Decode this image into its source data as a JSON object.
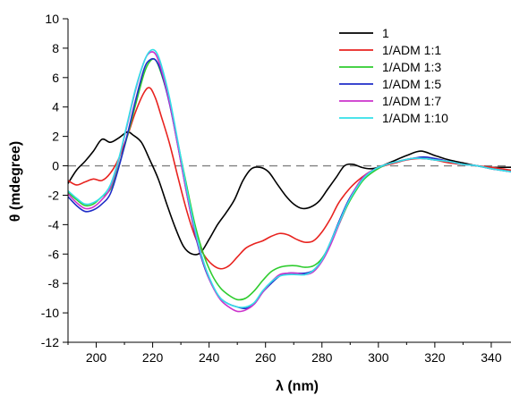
{
  "chart_data": {
    "type": "line",
    "title": "",
    "xlabel": "λ (nm)",
    "ylabel": "θ (mdegree)",
    "xlim": [
      190,
      347
    ],
    "ylim": [
      -12,
      10
    ],
    "xticks": [
      200,
      220,
      240,
      260,
      280,
      300,
      320,
      340
    ],
    "yticks": [
      -12,
      -10,
      -8,
      -6,
      -4,
      -2,
      0,
      2,
      4,
      6,
      8,
      10
    ],
    "grid": false,
    "legend_position": "top-right",
    "reference_line": {
      "y": 0,
      "style": "dashed",
      "color": "#808080"
    },
    "series": [
      {
        "name": "1",
        "color": "#000000",
        "points": [
          [
            190,
            -1.2
          ],
          [
            193,
            -0.3
          ],
          [
            196,
            0.3
          ],
          [
            199,
            1.0
          ],
          [
            202,
            1.8
          ],
          [
            205,
            1.6
          ],
          [
            208,
            1.9
          ],
          [
            211,
            2.3
          ],
          [
            213,
            2.1
          ],
          [
            216,
            1.6
          ],
          [
            219,
            0.4
          ],
          [
            222,
            -0.9
          ],
          [
            225,
            -2.6
          ],
          [
            228,
            -4.2
          ],
          [
            231,
            -5.5
          ],
          [
            234,
            -6.0
          ],
          [
            237,
            -5.9
          ],
          [
            240,
            -5.0
          ],
          [
            243,
            -4.0
          ],
          [
            246,
            -3.2
          ],
          [
            249,
            -2.3
          ],
          [
            252,
            -1.0
          ],
          [
            255,
            -0.2
          ],
          [
            258,
            -0.1
          ],
          [
            261,
            -0.4
          ],
          [
            264,
            -1.2
          ],
          [
            267,
            -2.0
          ],
          [
            270,
            -2.6
          ],
          [
            273,
            -2.9
          ],
          [
            276,
            -2.8
          ],
          [
            279,
            -2.4
          ],
          [
            282,
            -1.6
          ],
          [
            285,
            -0.8
          ],
          [
            288,
            0.0
          ],
          [
            291,
            0.1
          ],
          [
            294,
            -0.1
          ],
          [
            297,
            -0.2
          ],
          [
            300,
            -0.1
          ],
          [
            305,
            0.3
          ],
          [
            310,
            0.7
          ],
          [
            315,
            1.0
          ],
          [
            320,
            0.7
          ],
          [
            325,
            0.4
          ],
          [
            330,
            0.2
          ],
          [
            335,
            0.0
          ],
          [
            340,
            -0.1
          ],
          [
            347,
            -0.1
          ]
        ]
      },
      {
        "name": "1/ADM 1:1",
        "color": "#e8231f",
        "points": [
          [
            190,
            -1.0
          ],
          [
            193,
            -1.3
          ],
          [
            196,
            -1.1
          ],
          [
            199,
            -0.9
          ],
          [
            202,
            -1.0
          ],
          [
            205,
            -0.5
          ],
          [
            208,
            0.5
          ],
          [
            211,
            2.0
          ],
          [
            214,
            3.7
          ],
          [
            217,
            5.0
          ],
          [
            219,
            5.3
          ],
          [
            221,
            4.6
          ],
          [
            223,
            3.4
          ],
          [
            226,
            1.5
          ],
          [
            229,
            -0.8
          ],
          [
            232,
            -3.0
          ],
          [
            235,
            -4.8
          ],
          [
            238,
            -6.0
          ],
          [
            241,
            -6.7
          ],
          [
            244,
            -7.0
          ],
          [
            247,
            -6.8
          ],
          [
            250,
            -6.2
          ],
          [
            253,
            -5.6
          ],
          [
            256,
            -5.3
          ],
          [
            259,
            -5.1
          ],
          [
            262,
            -4.8
          ],
          [
            265,
            -4.6
          ],
          [
            268,
            -4.7
          ],
          [
            271,
            -5.0
          ],
          [
            274,
            -5.2
          ],
          [
            277,
            -5.1
          ],
          [
            280,
            -4.5
          ],
          [
            283,
            -3.6
          ],
          [
            286,
            -2.5
          ],
          [
            290,
            -1.5
          ],
          [
            294,
            -0.8
          ],
          [
            298,
            -0.3
          ],
          [
            302,
            0.0
          ],
          [
            306,
            0.2
          ],
          [
            310,
            0.4
          ],
          [
            315,
            0.5
          ],
          [
            320,
            0.4
          ],
          [
            325,
            0.2
          ],
          [
            330,
            0.1
          ],
          [
            335,
            0.0
          ],
          [
            340,
            -0.1
          ],
          [
            347,
            -0.3
          ]
        ]
      },
      {
        "name": "1/ADM 1:3",
        "color": "#2ecc2e",
        "points": [
          [
            190,
            -1.8
          ],
          [
            193,
            -2.3
          ],
          [
            196,
            -2.7
          ],
          [
            199,
            -2.6
          ],
          [
            202,
            -2.1
          ],
          [
            205,
            -1.6
          ],
          [
            208,
            0.0
          ],
          [
            211,
            2.0
          ],
          [
            214,
            4.2
          ],
          [
            217,
            6.3
          ],
          [
            219,
            7.1
          ],
          [
            221,
            7.2
          ],
          [
            223,
            6.3
          ],
          [
            226,
            4.3
          ],
          [
            229,
            1.5
          ],
          [
            232,
            -1.3
          ],
          [
            235,
            -4.0
          ],
          [
            238,
            -6.0
          ],
          [
            241,
            -7.4
          ],
          [
            244,
            -8.3
          ],
          [
            247,
            -8.8
          ],
          [
            250,
            -9.1
          ],
          [
            253,
            -9.0
          ],
          [
            256,
            -8.5
          ],
          [
            259,
            -7.8
          ],
          [
            262,
            -7.2
          ],
          [
            265,
            -6.9
          ],
          [
            268,
            -6.8
          ],
          [
            271,
            -6.8
          ],
          [
            274,
            -6.9
          ],
          [
            277,
            -6.8
          ],
          [
            280,
            -6.3
          ],
          [
            283,
            -5.3
          ],
          [
            286,
            -4.0
          ],
          [
            289,
            -2.7
          ],
          [
            292,
            -1.7
          ],
          [
            295,
            -0.9
          ],
          [
            299,
            -0.3
          ],
          [
            303,
            0.1
          ],
          [
            307,
            0.3
          ],
          [
            312,
            0.5
          ],
          [
            316,
            0.5
          ],
          [
            320,
            0.4
          ],
          [
            325,
            0.3
          ],
          [
            330,
            0.1
          ],
          [
            335,
            0.0
          ],
          [
            340,
            -0.2
          ],
          [
            347,
            -0.4
          ]
        ]
      },
      {
        "name": "1/ADM 1:5",
        "color": "#1f2dc8",
        "points": [
          [
            190,
            -2.1
          ],
          [
            193,
            -2.7
          ],
          [
            196,
            -3.1
          ],
          [
            199,
            -3.0
          ],
          [
            202,
            -2.6
          ],
          [
            205,
            -1.9
          ],
          [
            208,
            -0.1
          ],
          [
            211,
            2.1
          ],
          [
            214,
            4.5
          ],
          [
            217,
            6.6
          ],
          [
            219,
            7.2
          ],
          [
            221,
            7.2
          ],
          [
            223,
            6.4
          ],
          [
            226,
            4.2
          ],
          [
            229,
            1.3
          ],
          [
            232,
            -1.8
          ],
          [
            235,
            -4.6
          ],
          [
            238,
            -6.7
          ],
          [
            241,
            -8.1
          ],
          [
            244,
            -9.0
          ],
          [
            247,
            -9.4
          ],
          [
            250,
            -9.6
          ],
          [
            253,
            -9.7
          ],
          [
            256,
            -9.4
          ],
          [
            259,
            -8.6
          ],
          [
            262,
            -8.0
          ],
          [
            265,
            -7.5
          ],
          [
            268,
            -7.3
          ],
          [
            271,
            -7.3
          ],
          [
            274,
            -7.3
          ],
          [
            277,
            -7.1
          ],
          [
            280,
            -6.4
          ],
          [
            283,
            -5.2
          ],
          [
            286,
            -3.8
          ],
          [
            289,
            -2.5
          ],
          [
            292,
            -1.5
          ],
          [
            295,
            -0.7
          ],
          [
            299,
            -0.2
          ],
          [
            303,
            0.1
          ],
          [
            307,
            0.3
          ],
          [
            312,
            0.5
          ],
          [
            316,
            0.6
          ],
          [
            320,
            0.5
          ],
          [
            325,
            0.3
          ],
          [
            330,
            0.1
          ],
          [
            335,
            0.0
          ],
          [
            340,
            -0.2
          ],
          [
            347,
            -0.4
          ]
        ]
      },
      {
        "name": "1/ADM 1:7",
        "color": "#cc33cc",
        "points": [
          [
            190,
            -1.9
          ],
          [
            193,
            -2.5
          ],
          [
            196,
            -2.9
          ],
          [
            199,
            -2.8
          ],
          [
            202,
            -2.3
          ],
          [
            205,
            -1.5
          ],
          [
            208,
            0.4
          ],
          [
            211,
            2.8
          ],
          [
            214,
            5.2
          ],
          [
            217,
            7.1
          ],
          [
            219,
            7.7
          ],
          [
            221,
            7.6
          ],
          [
            223,
            6.6
          ],
          [
            226,
            4.3
          ],
          [
            229,
            1.3
          ],
          [
            232,
            -1.8
          ],
          [
            235,
            -4.5
          ],
          [
            238,
            -6.6
          ],
          [
            241,
            -8.1
          ],
          [
            244,
            -9.1
          ],
          [
            247,
            -9.6
          ],
          [
            250,
            -9.9
          ],
          [
            253,
            -9.8
          ],
          [
            256,
            -9.4
          ],
          [
            259,
            -8.6
          ],
          [
            262,
            -7.9
          ],
          [
            265,
            -7.4
          ],
          [
            268,
            -7.3
          ],
          [
            271,
            -7.3
          ],
          [
            274,
            -7.4
          ],
          [
            277,
            -7.2
          ],
          [
            280,
            -6.5
          ],
          [
            283,
            -5.4
          ],
          [
            286,
            -4.0
          ],
          [
            289,
            -2.6
          ],
          [
            292,
            -1.5
          ],
          [
            295,
            -0.7
          ],
          [
            299,
            -0.2
          ],
          [
            303,
            0.1
          ],
          [
            307,
            0.3
          ],
          [
            312,
            0.5
          ],
          [
            316,
            0.5
          ],
          [
            320,
            0.4
          ],
          [
            325,
            0.3
          ],
          [
            330,
            0.1
          ],
          [
            335,
            0.0
          ],
          [
            340,
            -0.2
          ],
          [
            347,
            -0.4
          ]
        ]
      },
      {
        "name": "1/ADM 1:10",
        "color": "#33e0e8",
        "points": [
          [
            190,
            -1.7
          ],
          [
            193,
            -2.2
          ],
          [
            196,
            -2.6
          ],
          [
            199,
            -2.5
          ],
          [
            202,
            -2.1
          ],
          [
            205,
            -1.3
          ],
          [
            208,
            0.5
          ],
          [
            211,
            2.9
          ],
          [
            214,
            5.3
          ],
          [
            217,
            7.1
          ],
          [
            219,
            7.8
          ],
          [
            221,
            7.8
          ],
          [
            223,
            6.9
          ],
          [
            226,
            4.6
          ],
          [
            229,
            1.6
          ],
          [
            232,
            -1.5
          ],
          [
            235,
            -4.3
          ],
          [
            238,
            -6.5
          ],
          [
            241,
            -8.0
          ],
          [
            244,
            -9.0
          ],
          [
            247,
            -9.4
          ],
          [
            250,
            -9.6
          ],
          [
            253,
            -9.6
          ],
          [
            256,
            -9.3
          ],
          [
            259,
            -8.5
          ],
          [
            262,
            -7.9
          ],
          [
            265,
            -7.5
          ],
          [
            268,
            -7.4
          ],
          [
            271,
            -7.4
          ],
          [
            274,
            -7.4
          ],
          [
            277,
            -7.1
          ],
          [
            280,
            -6.4
          ],
          [
            283,
            -5.2
          ],
          [
            286,
            -3.9
          ],
          [
            289,
            -2.6
          ],
          [
            292,
            -1.6
          ],
          [
            295,
            -0.8
          ],
          [
            299,
            -0.2
          ],
          [
            303,
            0.1
          ],
          [
            307,
            0.3
          ],
          [
            312,
            0.5
          ],
          [
            316,
            0.5
          ],
          [
            320,
            0.4
          ],
          [
            325,
            0.3
          ],
          [
            330,
            0.1
          ],
          [
            335,
            0.0
          ],
          [
            340,
            -0.2
          ],
          [
            347,
            -0.4
          ]
        ]
      }
    ]
  }
}
